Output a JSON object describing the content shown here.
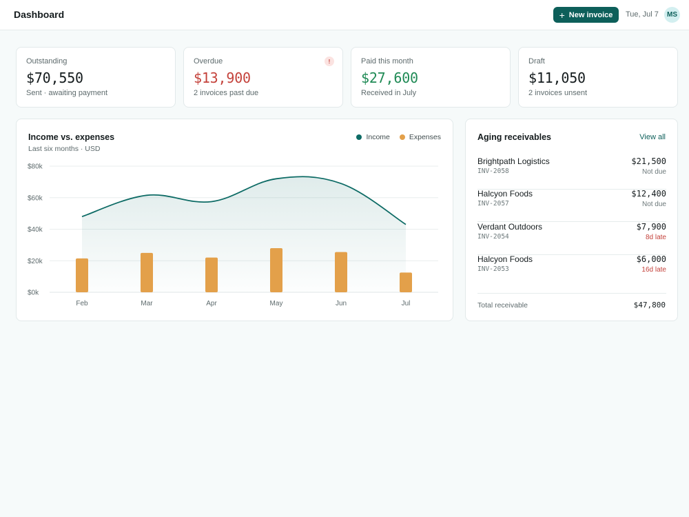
{
  "header": {
    "title": "Dashboard",
    "new_invoice_label": "New invoice",
    "date": "Tue, Jul 7",
    "avatar_initials": "MS"
  },
  "stats": [
    {
      "label": "Outstanding",
      "value": "$70,550",
      "sub": "Sent · awaiting payment",
      "color": "#141b1d"
    },
    {
      "label": "Overdue",
      "value": "$13,900",
      "sub": "2 invoices past due",
      "color": "#c4423b",
      "alert": "!"
    },
    {
      "label": "Paid this month",
      "value": "$27,600",
      "sub": "Received in July",
      "color": "#1f8a55"
    },
    {
      "label": "Draft",
      "value": "$11,050",
      "sub": "2 invoices unsent",
      "color": "#141b1d"
    }
  ],
  "income_chart": {
    "title": "Income vs. expenses",
    "subtitle": "Last six months · USD",
    "legend": [
      "Income",
      "Expenses"
    ]
  },
  "chart_data": {
    "type": "bar",
    "title": "Income vs. expenses",
    "subtitle": "Last six months · USD",
    "categories": [
      "Feb",
      "Mar",
      "Apr",
      "May",
      "Jun",
      "Jul"
    ],
    "y_ticks": [
      "$0k",
      "$20k",
      "$40k",
      "$60k",
      "$80k"
    ],
    "ylim": [
      0,
      80000
    ],
    "grid": true,
    "legend_position": "top-right",
    "series": [
      {
        "name": "Income",
        "kind": "line-area",
        "color": "#0d6b65",
        "values": [
          48000,
          61500,
          57500,
          72000,
          69000,
          43000
        ]
      },
      {
        "name": "Expenses",
        "kind": "bar",
        "color": "#e3a04a",
        "values": [
          21500,
          25000,
          22000,
          28000,
          25500,
          12500
        ]
      }
    ]
  },
  "aging": {
    "title": "Aging receivables",
    "view_all": "View all",
    "rows": [
      {
        "client": "Brightpath Logistics",
        "invoice": "INV-2058",
        "amount": "$21,500",
        "status": "Not due",
        "late": false
      },
      {
        "client": "Halcyon Foods",
        "invoice": "INV-2057",
        "amount": "$12,400",
        "status": "Not due",
        "late": false
      },
      {
        "client": "Verdant Outdoors",
        "invoice": "INV-2054",
        "amount": "$7,900",
        "status": "8d late",
        "late": true
      },
      {
        "client": "Halcyon Foods",
        "invoice": "INV-2053",
        "amount": "$6,000",
        "status": "16d late",
        "late": true
      }
    ],
    "total_label": "Total receivable",
    "total_amount": "$47,800"
  }
}
